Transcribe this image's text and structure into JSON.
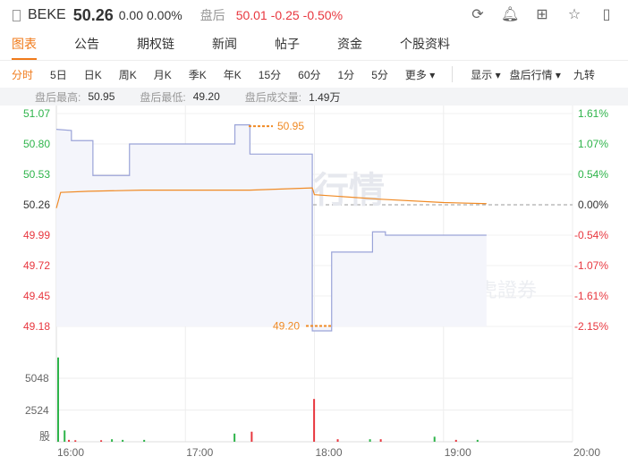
{
  "header": {
    "symbol": "BEKE",
    "price": "50.26",
    "change": "0.00",
    "change_pct": "0.00%",
    "after_hours_label": "盘后",
    "after_hours_price": "50.01",
    "after_hours_change": "-0.25",
    "after_hours_change_pct": "-0.50%"
  },
  "header_icons": [
    "refresh-icon",
    "bell-icon",
    "grid-icon",
    "star-icon",
    "panel-icon"
  ],
  "tabs": [
    "图表",
    "公告",
    "期权链",
    "新闻",
    "帖子",
    "资金",
    "个股资料"
  ],
  "periods": [
    "分时",
    "5日",
    "日K",
    "周K",
    "月K",
    "季K",
    "年K",
    "15分",
    "60分",
    "1分",
    "5分",
    "更多 ▾"
  ],
  "right_controls": [
    "显示 ▾",
    "盘后行情 ▾",
    "九转"
  ],
  "stats": {
    "high_label": "盘后最高:",
    "high": "50.95",
    "low_label": "盘后最低:",
    "low": "49.20",
    "vol_label": "盘后成交量:",
    "vol": "1.49万"
  },
  "watermark": "盘后行情",
  "logo": "老虎證券",
  "colors": {
    "up": "#e8373f",
    "down": "#2eb44a",
    "price_line": "#9aa3d8",
    "avg_line": "#f08a24",
    "accent": "#f07a1a"
  },
  "chart_data": {
    "type": "line",
    "y_left_ticks": [
      "51.07",
      "50.80",
      "50.53",
      "50.26",
      "49.99",
      "49.72",
      "49.45",
      "49.18"
    ],
    "y_right_ticks": [
      "1.61%",
      "1.07%",
      "0.54%",
      "0.00%",
      "-0.54%",
      "-1.07%",
      "-1.61%",
      "-2.15%"
    ],
    "ylim": [
      49.18,
      51.07
    ],
    "prev_close": 50.26,
    "x_ticks": [
      "16:00",
      "17:00",
      "18:00",
      "19:00",
      "20:00"
    ],
    "price": [
      [
        "16:00",
        50.93
      ],
      [
        "16:07",
        50.92
      ],
      [
        "16:07",
        50.83
      ],
      [
        "16:17",
        50.83
      ],
      [
        "16:17",
        50.52
      ],
      [
        "16:34",
        50.52
      ],
      [
        "16:34",
        50.8
      ],
      [
        "17:23",
        50.8
      ],
      [
        "17:23",
        50.97
      ],
      [
        "17:30",
        50.97
      ],
      [
        "17:30",
        50.71
      ],
      [
        "17:59",
        50.71
      ],
      [
        "17:59",
        49.14
      ],
      [
        "18:08",
        49.14
      ],
      [
        "18:08",
        49.84
      ],
      [
        "18:27",
        49.84
      ],
      [
        "18:27",
        50.02
      ],
      [
        "18:33",
        50.02
      ],
      [
        "18:33",
        49.99
      ],
      [
        "19:20",
        49.99
      ]
    ],
    "avg": [
      [
        "16:00",
        50.23
      ],
      [
        "16:02",
        50.37
      ],
      [
        "16:15",
        50.38
      ],
      [
        "16:40",
        50.39
      ],
      [
        "17:30",
        50.39
      ],
      [
        "17:59",
        50.41
      ],
      [
        "18:00",
        50.35
      ],
      [
        "18:30",
        50.31
      ],
      [
        "19:00",
        50.28
      ],
      [
        "19:20",
        50.27
      ]
    ],
    "annotations": {
      "high": "50.95",
      "low": "49.20"
    },
    "volume_ticks": [
      "5048",
      "2524",
      "股"
    ],
    "volume": [
      [
        "16:00",
        6700,
        "down"
      ],
      [
        "16:03",
        900,
        "down"
      ],
      [
        "16:05",
        150,
        "up"
      ],
      [
        "16:08",
        120,
        "up"
      ],
      [
        "16:20",
        120,
        "up"
      ],
      [
        "16:25",
        200,
        "down"
      ],
      [
        "16:30",
        150,
        "down"
      ],
      [
        "16:40",
        150,
        "down"
      ],
      [
        "17:22",
        650,
        "down"
      ],
      [
        "17:30",
        800,
        "up"
      ],
      [
        "17:59",
        3400,
        "up"
      ],
      [
        "18:10",
        200,
        "up"
      ],
      [
        "18:25",
        200,
        "down"
      ],
      [
        "18:30",
        200,
        "up"
      ],
      [
        "18:55",
        400,
        "down"
      ],
      [
        "19:05",
        150,
        "up"
      ],
      [
        "19:15",
        150,
        "down"
      ]
    ]
  }
}
